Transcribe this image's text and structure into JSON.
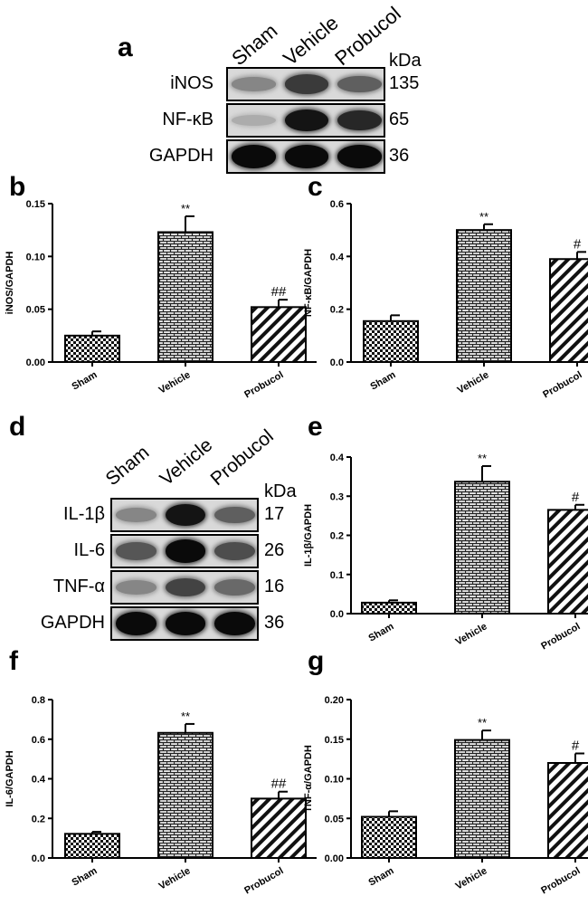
{
  "panel_letters": {
    "a": "a",
    "b": "b",
    "c": "c",
    "d": "d",
    "e": "e",
    "f": "f",
    "g": "g"
  },
  "blot_a": {
    "lanes": [
      "Sham",
      "Vehicle",
      "Probucol"
    ],
    "kda_header": "kDa",
    "rows": [
      {
        "label": "iNOS",
        "kda": "135",
        "intensity": [
          0.35,
          0.75,
          0.55
        ]
      },
      {
        "label": "NF-κB",
        "kda": "65",
        "intensity": [
          0.15,
          0.95,
          0.85
        ]
      },
      {
        "label": "GAPDH",
        "kda": "36",
        "intensity": [
          1.0,
          1.0,
          1.0
        ]
      }
    ]
  },
  "blot_d": {
    "lanes": [
      "Sham",
      "Vehicle",
      "Probucol"
    ],
    "kda_header": "kDa",
    "rows": [
      {
        "label": "IL-1β",
        "kda": "17",
        "intensity": [
          0.35,
          0.95,
          0.55
        ]
      },
      {
        "label": "IL-6",
        "kda": "26",
        "intensity": [
          0.6,
          1.0,
          0.65
        ]
      },
      {
        "label": "TNF-α",
        "kda": "16",
        "intensity": [
          0.35,
          0.7,
          0.5
        ]
      },
      {
        "label": "GAPDH",
        "kda": "36",
        "intensity": [
          1.0,
          1.0,
          1.0
        ]
      }
    ]
  },
  "chart_data": [
    {
      "id": "b",
      "type": "bar",
      "categories": [
        "Sham",
        "Vehicle",
        "Probucol"
      ],
      "values": [
        0.025,
        0.123,
        0.052
      ],
      "errors": [
        0.004,
        0.015,
        0.007
      ],
      "annotations": [
        "",
        "**",
        "##"
      ],
      "ylabel": "iNOS/GAPDH",
      "ylim": [
        0,
        0.15
      ],
      "yticks": [
        "0.00",
        "0.05",
        "0.10",
        "0.15"
      ],
      "patterns": [
        "checker",
        "brick",
        "hatch"
      ]
    },
    {
      "id": "c",
      "type": "bar",
      "categories": [
        "Sham",
        "Vehicle",
        "Probucol"
      ],
      "values": [
        0.155,
        0.5,
        0.39
      ],
      "errors": [
        0.022,
        0.022,
        0.027
      ],
      "annotations": [
        "",
        "**",
        "#"
      ],
      "ylabel": "NF-κB/GAPDH",
      "ylim": [
        0,
        0.6
      ],
      "yticks": [
        "0.0",
        "0.2",
        "0.4",
        "0.6"
      ],
      "patterns": [
        "checker",
        "brick",
        "hatch"
      ]
    },
    {
      "id": "e",
      "type": "bar",
      "categories": [
        "Sham",
        "Vehicle",
        "Probucol"
      ],
      "values": [
        0.028,
        0.337,
        0.265
      ],
      "errors": [
        0.006,
        0.04,
        0.013
      ],
      "annotations": [
        "",
        "**",
        "#"
      ],
      "ylabel": "IL-1β/GAPDH",
      "ylim": [
        0,
        0.4
      ],
      "yticks": [
        "0.0",
        "0.1",
        "0.2",
        "0.3",
        "0.4"
      ],
      "patterns": [
        "checker",
        "brick",
        "hatch"
      ]
    },
    {
      "id": "f",
      "type": "bar",
      "categories": [
        "Sham",
        "Vehicle",
        "Probucol"
      ],
      "values": [
        0.122,
        0.632,
        0.3
      ],
      "errors": [
        0.01,
        0.045,
        0.035
      ],
      "annotations": [
        "",
        "**",
        "##"
      ],
      "ylabel": "IL-6/GAPDH",
      "ylim": [
        0,
        0.8
      ],
      "yticks": [
        "0.0",
        "0.2",
        "0.4",
        "0.6",
        "0.8"
      ],
      "patterns": [
        "checker",
        "brick",
        "hatch"
      ]
    },
    {
      "id": "g",
      "type": "bar",
      "categories": [
        "Sham",
        "Vehicle",
        "Probucol"
      ],
      "values": [
        0.052,
        0.149,
        0.12
      ],
      "errors": [
        0.007,
        0.012,
        0.012
      ],
      "annotations": [
        "",
        "**",
        "#"
      ],
      "ylabel": "TNF-α/GAPDH",
      "ylim": [
        0,
        0.2
      ],
      "yticks": [
        "0.00",
        "0.05",
        "0.10",
        "0.15",
        "0.20"
      ],
      "patterns": [
        "checker",
        "brick",
        "hatch"
      ]
    }
  ]
}
